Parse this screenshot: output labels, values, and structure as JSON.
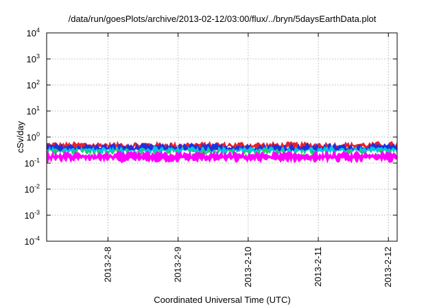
{
  "chart_data": {
    "type": "area",
    "title": "/data/run/goesPlots/archive/2013-02-12/03:00/flux/../bryn/5daysEarthData.plot",
    "xlabel": "Coordinated Universal Time (UTC)",
    "ylabel": "cSv/day",
    "y_scale": "log",
    "ylim": [
      0.0001,
      10000
    ],
    "y_ticks": [
      {
        "base": "10",
        "exp": "-4",
        "value": 0.0001
      },
      {
        "base": "10",
        "exp": "-3",
        "value": 0.001
      },
      {
        "base": "10",
        "exp": "-2",
        "value": 0.01
      },
      {
        "base": "10",
        "exp": "-1",
        "value": 0.1
      },
      {
        "base": "10",
        "exp": "0",
        "value": 1
      },
      {
        "base": "10",
        "exp": "1",
        "value": 10
      },
      {
        "base": "10",
        "exp": "2",
        "value": 100
      },
      {
        "base": "10",
        "exp": "3",
        "value": 1000
      },
      {
        "base": "10",
        "exp": "4",
        "value": 10000
      }
    ],
    "xlim": [
      "2013-02-07T03:00",
      "2013-02-12T03:00"
    ],
    "x_ticks": [
      {
        "label": "2013-2-8",
        "date": "2013-02-08T00:00"
      },
      {
        "label": "2013-2-9",
        "date": "2013-02-09T00:00"
      },
      {
        "label": "2013-2-10",
        "date": "2013-02-10T00:00"
      },
      {
        "label": "2013-2-11",
        "date": "2013-02-11T00:00"
      },
      {
        "label": "2013-2-12",
        "date": "2013-02-12T00:00"
      }
    ],
    "grid": true,
    "legend": "none",
    "bands": [
      {
        "color": "#e8202a",
        "upper": 0.5,
        "lower": 0.4
      },
      {
        "color": "#2030e0",
        "upper": 0.42,
        "lower": 0.3
      },
      {
        "color": "#00c8e8",
        "upper": 0.32,
        "lower": 0.25
      },
      {
        "color": "#20d060",
        "upper": 0.26,
        "lower": 0.22
      },
      {
        "color": "#ffffff",
        "upper": 0.23,
        "lower": 0.2
      },
      {
        "color": "#ff00ff",
        "upper": 0.21,
        "lower": 0.14
      }
    ]
  }
}
